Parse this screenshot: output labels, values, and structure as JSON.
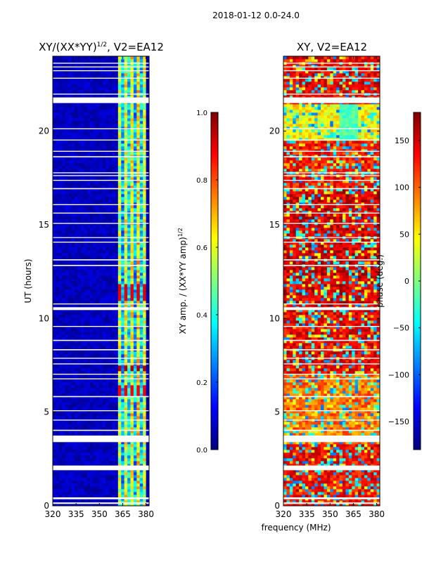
{
  "figure": {
    "suptitle": "2018-01-12 0.0-24.0",
    "shared_xlabel": "frequency (MHz)"
  },
  "colors": {
    "jet_stops": [
      "#00007f",
      "#0000ff",
      "#007fff",
      "#00ffff",
      "#7fff7f",
      "#ffff00",
      "#ff7f00",
      "#ff0000",
      "#7f0000"
    ],
    "gap": "#ffffff"
  },
  "chart_data": [
    {
      "type": "heatmap",
      "title_main": "XY/(XX*YY)",
      "title_exponent": "1/2",
      "title_suffix": ", V2=EA12",
      "ylabel": "UT (hours)",
      "xlim": [
        320,
        382
      ],
      "ylim": [
        0,
        24
      ],
      "xticks": [
        {
          "value": 320,
          "label": "320"
        },
        {
          "value": 335,
          "label": "335"
        },
        {
          "value": 350,
          "label": "350"
        },
        {
          "value": 365,
          "label": "365"
        },
        {
          "value": 380,
          "label": "380"
        }
      ],
      "yticks": [
        {
          "value": 0,
          "label": "0"
        },
        {
          "value": 5,
          "label": "5"
        },
        {
          "value": 10,
          "label": "10"
        },
        {
          "value": 15,
          "label": "15"
        },
        {
          "value": 20,
          "label": "20"
        }
      ],
      "colorbar": {
        "label_main": "XY amp. / (XX*YY amp)",
        "label_exponent": "1/2",
        "range": [
          0.0,
          1.0
        ],
        "ticks": [
          {
            "value": 0.0,
            "label": "0.0"
          },
          {
            "value": 0.2,
            "label": "0.2"
          },
          {
            "value": 0.4,
            "label": "0.4"
          },
          {
            "value": 0.6,
            "label": "0.6"
          },
          {
            "value": 0.8,
            "label": "0.8"
          },
          {
            "value": 1.0,
            "label": "1.0"
          }
        ]
      },
      "background_value": 0.06,
      "bright_channels": [
        {
          "freq_from": 361.5,
          "freq_to": 363.5,
          "value": 0.55
        },
        {
          "freq_from": 363.5,
          "freq_to": 365.5,
          "value": 0.3
        },
        {
          "freq_from": 365.5,
          "freq_to": 367.5,
          "value": 0.6
        },
        {
          "freq_from": 367.5,
          "freq_to": 369.5,
          "value": 0.35
        },
        {
          "freq_from": 369.5,
          "freq_to": 371.5,
          "value": 0.62
        },
        {
          "freq_from": 371.5,
          "freq_to": 373.5,
          "value": 0.3
        },
        {
          "freq_from": 373.5,
          "freq_to": 375.5,
          "value": 0.65
        },
        {
          "freq_from": 375.5,
          "freq_to": 377.5,
          "value": 0.33
        },
        {
          "freq_from": 377.5,
          "freq_to": 379.5,
          "value": 0.58
        },
        {
          "freq_from": 379.5,
          "freq_to": 380.5,
          "value": 0.2
        }
      ],
      "hot_spots": [
        {
          "time_from": 10.9,
          "time_to": 11.8,
          "value": 0.9
        },
        {
          "time_from": 7.2,
          "time_to": 7.5,
          "value": 0.95
        },
        {
          "time_from": 5.9,
          "time_to": 6.4,
          "value": 0.88
        }
      ]
    },
    {
      "type": "heatmap",
      "title_main": "XY, V2=EA12",
      "ylabel": "",
      "xlim": [
        320,
        382
      ],
      "ylim": [
        0,
        24
      ],
      "xticks": [
        {
          "value": 320,
          "label": "320"
        },
        {
          "value": 335,
          "label": "335"
        },
        {
          "value": 350,
          "label": "350"
        },
        {
          "value": 365,
          "label": "365"
        },
        {
          "value": 380,
          "label": "380"
        }
      ],
      "yticks": [
        {
          "value": 0,
          "label": "0"
        },
        {
          "value": 5,
          "label": "5"
        },
        {
          "value": 10,
          "label": "10"
        },
        {
          "value": 15,
          "label": "15"
        },
        {
          "value": 20,
          "label": "20"
        }
      ],
      "colorbar": {
        "label": "phase (deg.)",
        "range": [
          -180,
          180
        ],
        "ticks": [
          {
            "value": -150,
            "label": "−150"
          },
          {
            "value": -100,
            "label": "−100"
          },
          {
            "value": -50,
            "label": "−50"
          },
          {
            "value": 0,
            "label": "0"
          },
          {
            "value": 50,
            "label": "50"
          },
          {
            "value": 100,
            "label": "100"
          },
          {
            "value": 150,
            "label": "150"
          }
        ]
      },
      "time_bands_phase": [
        {
          "time_from": 0.0,
          "time_to": 3.3,
          "phase": 135
        },
        {
          "time_from": 3.3,
          "time_to": 7.0,
          "phase": 95
        },
        {
          "time_from": 7.0,
          "time_to": 10.5,
          "phase": 140
        },
        {
          "time_from": 10.5,
          "time_to": 17.0,
          "phase": 150
        },
        {
          "time_from": 17.0,
          "time_to": 19.5,
          "phase": 130
        },
        {
          "time_from": 19.5,
          "time_to": 21.5,
          "phase": 45
        },
        {
          "time_from": 21.5,
          "time_to": 24.0,
          "phase": 140
        }
      ]
    }
  ],
  "shared": {
    "gap_intervals": [
      [
        0.1,
        0.18
      ],
      [
        0.35,
        0.45
      ],
      [
        1.9,
        2.15
      ],
      [
        3.4,
        3.75
      ],
      [
        4.0,
        4.06
      ],
      [
        4.55,
        4.6
      ],
      [
        5.05,
        5.1
      ],
      [
        5.8,
        5.86
      ],
      [
        6.75,
        6.8
      ],
      [
        7.0,
        7.05
      ],
      [
        7.55,
        7.6
      ],
      [
        7.85,
        7.9
      ],
      [
        8.3,
        8.36
      ],
      [
        8.8,
        8.86
      ],
      [
        9.55,
        9.6
      ],
      [
        10.45,
        10.6
      ],
      [
        10.75,
        10.8
      ],
      [
        12.8,
        12.86
      ],
      [
        13.1,
        13.16
      ],
      [
        14.05,
        14.1
      ],
      [
        14.3,
        14.34
      ],
      [
        15.05,
        15.1
      ],
      [
        15.6,
        15.65
      ],
      [
        16.05,
        16.1
      ],
      [
        16.9,
        16.96
      ],
      [
        17.35,
        17.4
      ],
      [
        17.6,
        17.65
      ],
      [
        17.75,
        17.8
      ],
      [
        18.6,
        18.66
      ],
      [
        18.9,
        18.95
      ],
      [
        19.5,
        19.55
      ],
      [
        20.1,
        20.15
      ],
      [
        21.5,
        21.8
      ],
      [
        21.95,
        22.0
      ],
      [
        22.8,
        22.85
      ],
      [
        23.2,
        23.25
      ],
      [
        23.4,
        23.45
      ],
      [
        23.6,
        23.65
      ]
    ]
  }
}
